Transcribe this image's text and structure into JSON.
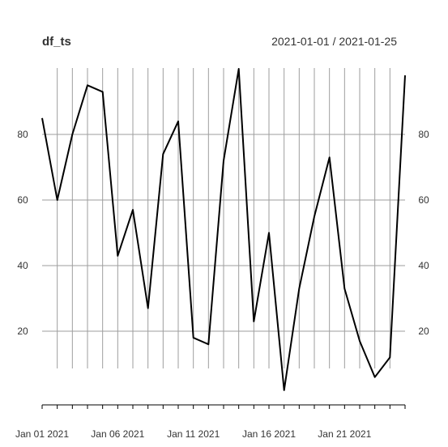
{
  "chart_data": {
    "type": "line",
    "title": "df_ts",
    "date_range": "2021-01-01 / 2021-01-25",
    "x": [
      "2021-01-01",
      "2021-01-02",
      "2021-01-03",
      "2021-01-04",
      "2021-01-05",
      "2021-01-06",
      "2021-01-07",
      "2021-01-08",
      "2021-01-09",
      "2021-01-10",
      "2021-01-11",
      "2021-01-12",
      "2021-01-13",
      "2021-01-14",
      "2021-01-15",
      "2021-01-16",
      "2021-01-17",
      "2021-01-18",
      "2021-01-19",
      "2021-01-20",
      "2021-01-21",
      "2021-01-22",
      "2021-01-23",
      "2021-01-24",
      "2021-01-25"
    ],
    "series": [
      {
        "values": [
          85,
          60,
          80,
          95,
          93,
          43,
          57,
          27,
          74,
          84,
          18,
          16,
          72,
          100,
          23,
          50,
          2,
          33,
          55,
          73,
          33,
          17,
          6,
          12,
          98
        ]
      }
    ],
    "ylim": [
      0,
      100
    ],
    "y_ticks": [
      20,
      40,
      60,
      80
    ],
    "x_tick_labels": [
      {
        "date": "2021-01-01",
        "label": "Jan 01 2021"
      },
      {
        "date": "2021-01-06",
        "label": "Jan 06 2021"
      },
      {
        "date": "2021-01-11",
        "label": "Jan 11 2021"
      },
      {
        "date": "2021-01-16",
        "label": "Jan 16 2021"
      },
      {
        "date": "2021-01-21",
        "label": "Jan 21 2021"
      }
    ],
    "grid": true,
    "y_axis_sides": [
      "left",
      "right"
    ],
    "colors": {
      "line": "#000000",
      "grid": "#9e9e9e",
      "text": "#333333"
    }
  }
}
